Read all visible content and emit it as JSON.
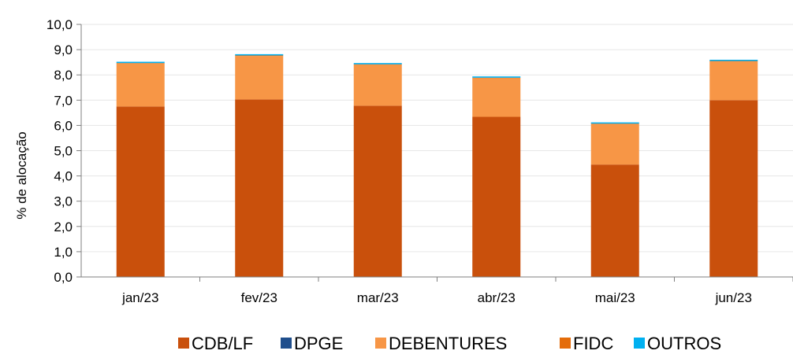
{
  "chart_data": {
    "type": "bar",
    "stacked": true,
    "categories": [
      "jan/23",
      "fev/23",
      "mar/23",
      "abr/23",
      "mai/23",
      "jun/23"
    ],
    "series": [
      {
        "name": "CDB/LF",
        "color": "#C9500C",
        "values": [
          6.75,
          7.03,
          6.78,
          6.34,
          4.45,
          7.0
        ]
      },
      {
        "name": "DPGE",
        "color": "#1F4E8C",
        "values": [
          0.0,
          0.0,
          0.0,
          0.0,
          0.0,
          0.0
        ]
      },
      {
        "name": "DEBENTURES",
        "color": "#F79646",
        "values": [
          1.7,
          1.72,
          1.62,
          1.53,
          1.6,
          1.53
        ]
      },
      {
        "name": "FIDC",
        "color": "#E46C0A",
        "values": [
          0.02,
          0.02,
          0.02,
          0.02,
          0.02,
          0.02
        ]
      },
      {
        "name": "OUTROS",
        "color": "#00B0F0",
        "values": [
          0.05,
          0.05,
          0.05,
          0.05,
          0.05,
          0.05
        ]
      }
    ],
    "ylabel": "% de alocação",
    "xlabel": "",
    "ylim": [
      0,
      10
    ],
    "yticks": [
      "0,0",
      "1,0",
      "2,0",
      "3,0",
      "4,0",
      "5,0",
      "6,0",
      "7,0",
      "8,0",
      "9,0",
      "10,0"
    ],
    "grid": true,
    "legend_position": "bottom"
  }
}
